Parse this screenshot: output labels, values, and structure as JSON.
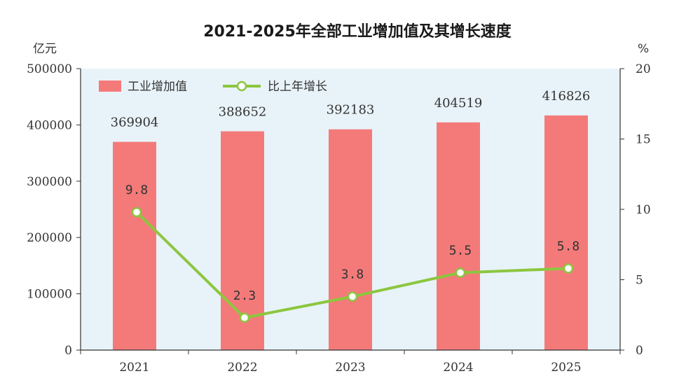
{
  "chart_data": {
    "type": "bar",
    "title": "2021-2025年全部工业增加值及其增长速度",
    "categories": [
      "2021",
      "2022",
      "2023",
      "2024",
      "2025"
    ],
    "left_axis": {
      "unit": "亿元",
      "ylim": [
        0,
        500000
      ],
      "ticks": [
        0,
        100000,
        200000,
        300000,
        400000,
        500000
      ]
    },
    "right_axis": {
      "unit": "%",
      "ylim": [
        0,
        20
      ],
      "ticks": [
        0,
        5,
        10,
        15,
        20
      ]
    },
    "series": [
      {
        "name": "工业增加值",
        "type": "bar",
        "axis": "left",
        "color": "#f47a7a",
        "values": [
          369904,
          388652,
          392183,
          404519,
          416826
        ]
      },
      {
        "name": "比上年增长",
        "type": "line",
        "axis": "right",
        "color": "#8cc63f",
        "values": [
          9.8,
          2.3,
          3.8,
          5.5,
          5.8
        ],
        "labels": [
          "9.8",
          "2.3",
          "3.8",
          "5.5",
          "5.8"
        ]
      }
    ],
    "legend_position": "top-left",
    "plot_background": "#e8f3f9",
    "grid": false
  }
}
